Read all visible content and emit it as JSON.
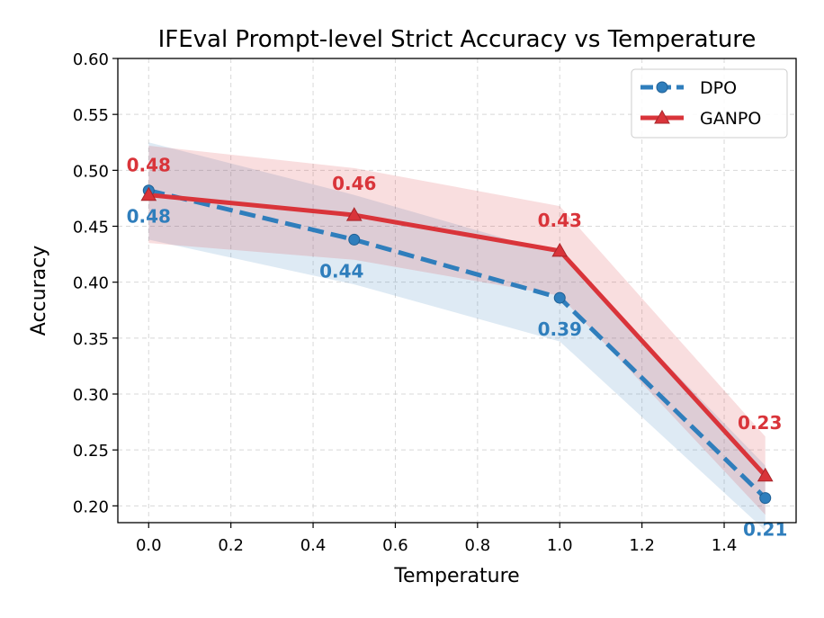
{
  "chart_data": {
    "type": "line",
    "title": "IFEval Prompt-level Strict Accuracy vs Temperature",
    "xlabel": "Temperature",
    "ylabel": "Accuracy",
    "xlim": [
      -0.075,
      1.575
    ],
    "ylim": [
      0.185,
      0.6
    ],
    "x_ticks": [
      0.0,
      0.2,
      0.4,
      0.6,
      0.8,
      1.0,
      1.2,
      1.4
    ],
    "x_tick_labels": [
      "0.0",
      "0.2",
      "0.4",
      "0.6",
      "0.8",
      "1.0",
      "1.2",
      "1.4"
    ],
    "y_ticks": [
      0.2,
      0.25,
      0.3,
      0.35,
      0.4,
      0.45,
      0.5,
      0.55,
      0.6
    ],
    "y_tick_labels": [
      "0.20",
      "0.25",
      "0.30",
      "0.35",
      "0.40",
      "0.45",
      "0.50",
      "0.55",
      "0.60"
    ],
    "grid": true,
    "legend_position": "top-right",
    "x": [
      0.0,
      0.5,
      1.0,
      1.5
    ],
    "series": [
      {
        "name": "DPO",
        "color": "#2f7ebc",
        "linestyle": "dashed",
        "marker": "circle",
        "values": [
          0.482,
          0.438,
          0.386,
          0.207
        ],
        "band_lower": [
          0.438,
          0.398,
          0.347,
          0.178
        ],
        "band_upper": [
          0.525,
          0.478,
          0.425,
          0.236
        ],
        "data_labels": [
          "0.48",
          "0.44",
          "0.39",
          "0.21"
        ]
      },
      {
        "name": "GANPO",
        "color": "#d9343a",
        "linestyle": "solid",
        "marker": "triangle",
        "values": [
          0.478,
          0.46,
          0.428,
          0.227
        ],
        "band_lower": [
          0.435,
          0.42,
          0.388,
          0.192
        ],
        "band_upper": [
          0.522,
          0.502,
          0.468,
          0.262
        ],
        "data_labels": [
          "0.48",
          "0.46",
          "0.43",
          "0.23"
        ]
      }
    ]
  }
}
